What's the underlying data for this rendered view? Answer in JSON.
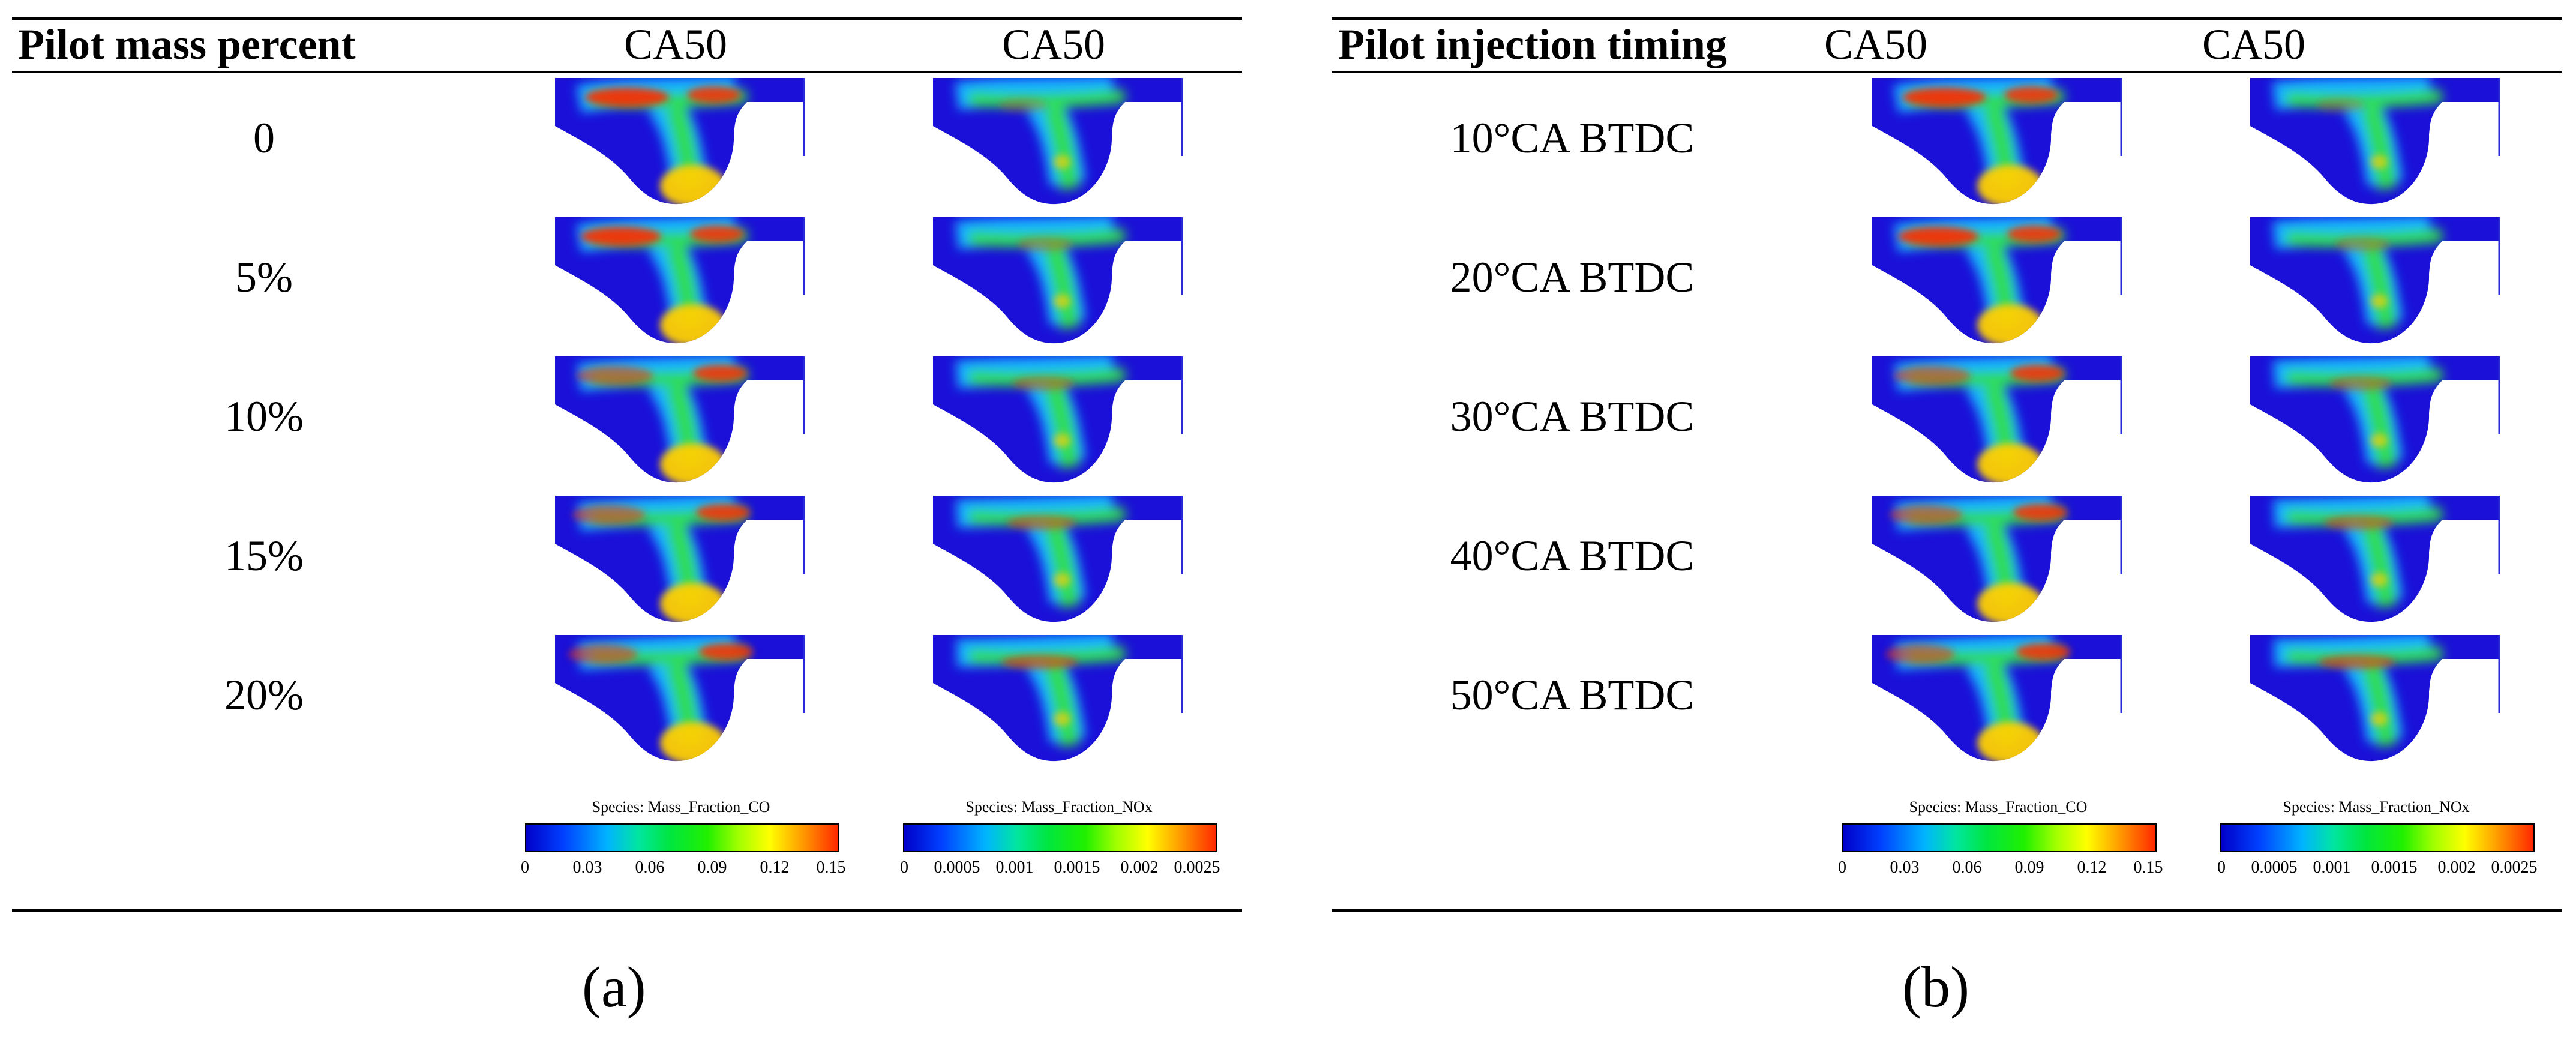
{
  "panel_a": {
    "header": {
      "parameter": "Pilot mass percent",
      "col1": "CA50",
      "col2": "CA50"
    },
    "rows": [
      "0",
      "5%",
      "10%",
      "15%",
      "20%"
    ],
    "colorbar_co": {
      "title": "Species: Mass_Fraction_CO",
      "ticks": [
        "0",
        "0.03",
        "0.06",
        "0.09",
        "0.12",
        "0.15"
      ]
    },
    "colorbar_nox": {
      "title": "Species: Mass_Fraction_NOx",
      "ticks": [
        "0",
        "0.0005",
        "0.001",
        "0.0015",
        "0.002",
        "0.0025"
      ]
    },
    "label": "(a)"
  },
  "panel_b": {
    "header": {
      "parameter": "Pilot injection timing",
      "col1": "CA50",
      "col2": "CA50"
    },
    "rows": [
      "10°CA BTDC",
      "20°CA BTDC",
      "30°CA BTDC",
      "40°CA BTDC",
      "50°CA BTDC"
    ],
    "colorbar_co": {
      "title": "Species: Mass_Fraction_CO",
      "ticks": [
        "0",
        "0.03",
        "0.06",
        "0.09",
        "0.12",
        "0.15"
      ]
    },
    "colorbar_nox": {
      "title": "Species: Mass_Fraction_NOx",
      "ticks": [
        "0",
        "0.0005",
        "0.001",
        "0.0015",
        "0.002",
        "0.0025"
      ]
    },
    "label": "(b)"
  },
  "colors": {
    "low": "#1a10d8",
    "mid_low": "#19b4ff",
    "mid": "#30e040",
    "mid_high": "#ffd000",
    "high": "#ff2a00"
  }
}
